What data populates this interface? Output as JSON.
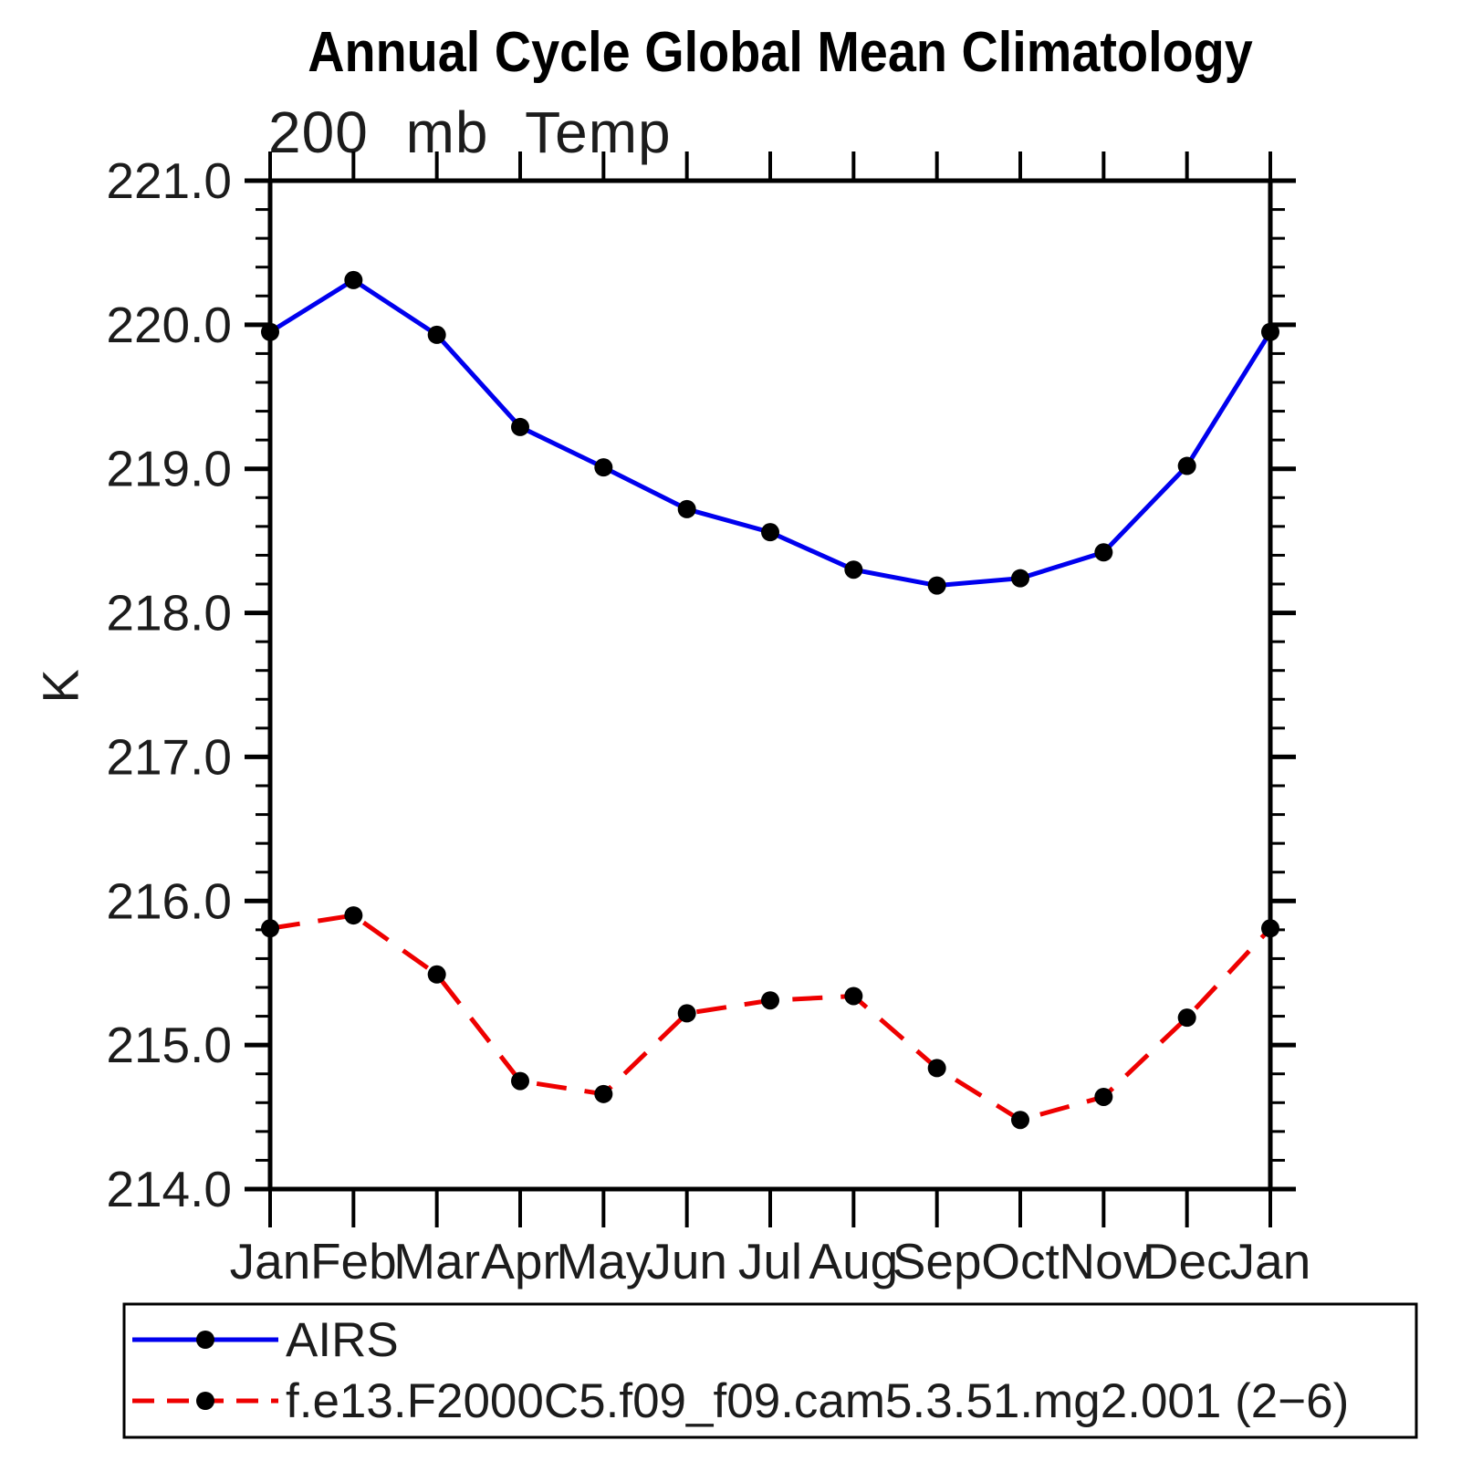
{
  "page": {
    "title": "Annual Cycle Global Mean Climatology",
    "subtitle": "200 mb Temp",
    "y_axis_label": "K"
  },
  "chart_data": {
    "type": "line",
    "title": "Annual Cycle Global Mean Climatology",
    "subtitle": "200 mb Temp",
    "xlabel": "",
    "ylabel": "K",
    "categories": [
      "Jan",
      "Feb",
      "Mar",
      "Apr",
      "May",
      "Jun",
      "Jul",
      "Aug",
      "Sep",
      "Oct",
      "Nov",
      "Dec",
      "Jan"
    ],
    "ylim": [
      214.0,
      221.0
    ],
    "ytick_interval": 1.0,
    "ytick_minor_interval": 0.2,
    "ytick_labels": [
      "214.0",
      "215.0",
      "216.0",
      "217.0",
      "218.0",
      "219.0",
      "220.0",
      "221.0"
    ],
    "grid": false,
    "background_color": "#ffffff",
    "frame_color": "#000000",
    "marker": "filled-circle",
    "marker_color": "#000000",
    "legend_position": "bottom-left-box",
    "series": [
      {
        "name": "AIRS",
        "color": "#0000ee",
        "line_style": "solid",
        "values": [
          219.95,
          220.31,
          219.93,
          219.29,
          219.01,
          218.72,
          218.56,
          218.3,
          218.19,
          218.24,
          218.42,
          219.02,
          219.95
        ]
      },
      {
        "name": "f.e13.F2000C5.f09_f09.cam5.3.51.mg2.001 (2−6)",
        "color": "#ee0000",
        "line_style": "dashed",
        "values": [
          215.81,
          215.9,
          215.49,
          214.75,
          214.66,
          215.22,
          215.31,
          215.34,
          214.84,
          214.48,
          214.64,
          215.19,
          215.81
        ]
      }
    ]
  }
}
